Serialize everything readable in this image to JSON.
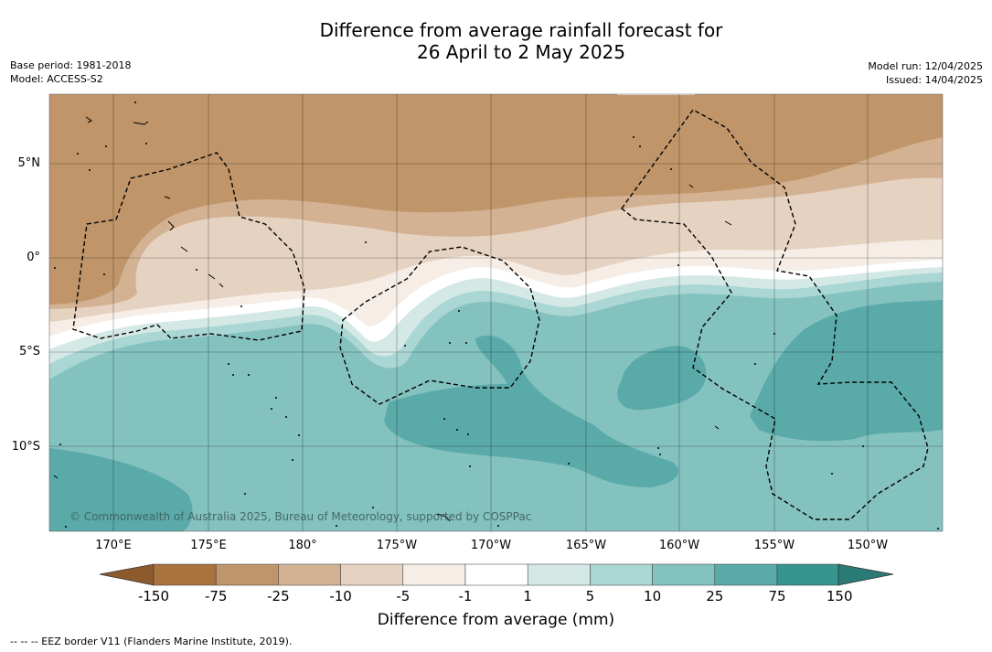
{
  "title": {
    "line1": "Difference from average rainfall forecast for",
    "line2": "26 April to 2 May 2025"
  },
  "meta_left": {
    "base_period": "Base period: 1981-2018",
    "model": "Model: ACCESS-S2"
  },
  "meta_right": {
    "model_run": "Model run: 12/04/2025",
    "issued": "Issued: 14/04/2025"
  },
  "map": {
    "lat_labels": [
      "5°N",
      "0°",
      "5°S",
      "10°S"
    ],
    "lon_labels": [
      "170°E",
      "175°E",
      "180°",
      "175°W",
      "170°W",
      "165°W",
      "160°W",
      "155°W",
      "150°W"
    ],
    "copyright": "© Commonwealth of Australia 2025, Bureau of Meteorology, supported by COSPPac"
  },
  "legend": {
    "title": "Difference from average (mm)",
    "ticks": [
      "-150",
      "-75",
      "-25",
      "-10",
      "-5",
      "-1",
      "1",
      "5",
      "10",
      "25",
      "75",
      "150"
    ],
    "colors": [
      "#8c5a2c",
      "#a8733f",
      "#c0956a",
      "#d3b293",
      "#e6d2c0",
      "#f5ede6",
      "#ffffff",
      "#d4e9e6",
      "#aad6d3",
      "#84c2bf",
      "#5aaaa9",
      "#36958f",
      "#2a7a75"
    ]
  },
  "footnote": "--  --  -- EEZ border V11 (Flanders Marine Institute, 2019)."
}
